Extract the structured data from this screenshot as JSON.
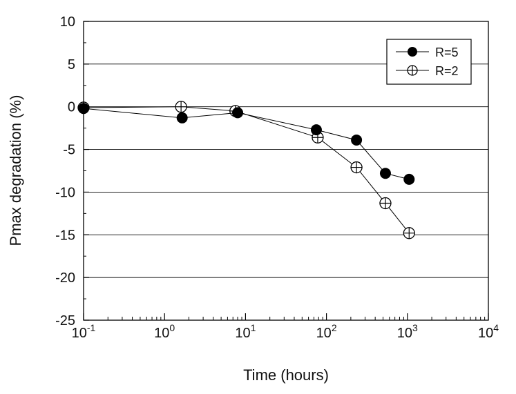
{
  "chart_data": {
    "type": "scatter",
    "title": "",
    "xlabel": "Time (hours)",
    "ylabel": "Pmax degradation (%)",
    "x_scale": "log",
    "xlim": [
      0.1,
      10000
    ],
    "ylim": [
      -25,
      10
    ],
    "x_tick_labels": [
      {
        "base": "10",
        "exp": "-1"
      },
      {
        "base": "10",
        "exp": "0"
      },
      {
        "base": "10",
        "exp": "1"
      },
      {
        "base": "10",
        "exp": "2"
      },
      {
        "base": "10",
        "exp": "3"
      },
      {
        "base": "10",
        "exp": "4"
      }
    ],
    "y_tick_labels": [
      "10",
      "5",
      "0",
      "-5",
      "-10",
      "-15",
      "-20",
      "-25"
    ],
    "y_ticks": [
      10,
      5,
      0,
      -5,
      -10,
      -15,
      -20,
      -25
    ],
    "grid": "horizontal",
    "legend": "top-right",
    "series": [
      {
        "name": "R=5",
        "marker": "filled-circle",
        "color": "#000000",
        "x": [
          0.1,
          1.65,
          8,
          75,
          235,
          535,
          1050
        ],
        "y": [
          -0.2,
          -1.3,
          -0.7,
          -2.7,
          -3.9,
          -7.8,
          -8.5
        ]
      },
      {
        "name": "R=2",
        "marker": "circle-plus",
        "color": "#000000",
        "x": [
          0.1,
          1.6,
          7.5,
          78,
          235,
          535,
          1050
        ],
        "y": [
          -0.1,
          0.0,
          -0.5,
          -3.6,
          -7.1,
          -11.3,
          -14.8
        ]
      }
    ]
  }
}
